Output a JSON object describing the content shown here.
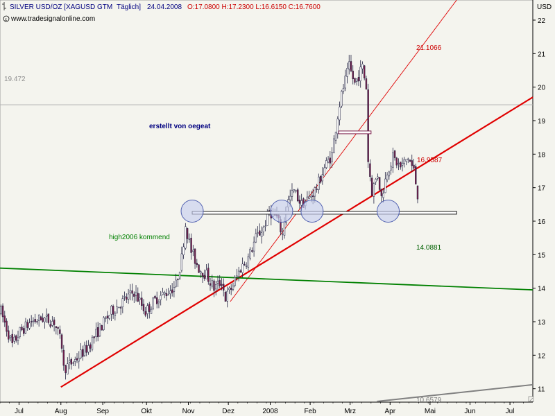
{
  "header": {
    "symbol": "SILVER USD/OZ [XAGUSD GTM",
    "period": "Täglich]",
    "date": "24.04.2008",
    "ohlc": "O:17.0800 H:17.2300 L:16.6150 C:16.7600",
    "website": "www.tradesignalonline.com",
    "currency": "USD"
  },
  "colors": {
    "background": "#f4f4ee",
    "up_candle": "#ffffff",
    "down_candle": "#7a1f4b",
    "trend_red": "#e00000",
    "trend_green": "#008000",
    "trend_gray": "#808080",
    "circle_fill": "#c8d0f0",
    "circle_stroke": "#5060b0",
    "text_blue": "#000080"
  },
  "annotations": {
    "author": "erstellt von oegeat",
    "green_label": "high2006 kommend",
    "level_19472": "19.472",
    "red_upper": "21.1066",
    "red_lower": "16.9587",
    "green_value": "14.0881",
    "gray_value": "10.6579"
  },
  "chart_data": {
    "type": "candlestick",
    "ylim": [
      10.6,
      22.6
    ],
    "y_ticks": [
      11,
      12,
      13,
      14,
      15,
      16,
      17,
      18,
      19,
      20,
      21,
      22
    ],
    "x_labels": [
      "Jul",
      "Aug",
      "Sep",
      "Okt",
      "Nov",
      "Dez",
      "2008",
      "Feb",
      "Mrz",
      "Apr",
      "Mai",
      "Jun",
      "Jul"
    ],
    "x_label_index": [
      10,
      32,
      54,
      77,
      99,
      120,
      142,
      163,
      184,
      205,
      226,
      247,
      268
    ],
    "n_bars": 280,
    "price_path": [
      [
        0,
        13.3
      ],
      [
        6,
        12.3
      ],
      [
        10,
        12.7
      ],
      [
        16,
        13.0
      ],
      [
        22,
        13.1
      ],
      [
        28,
        13.0
      ],
      [
        32,
        12.3
      ],
      [
        33,
        11.6
      ],
      [
        38,
        11.8
      ],
      [
        45,
        12.2
      ],
      [
        52,
        12.8
      ],
      [
        58,
        13.3
      ],
      [
        64,
        13.6
      ],
      [
        70,
        13.9
      ],
      [
        76,
        13.3
      ],
      [
        82,
        13.7
      ],
      [
        88,
        13.9
      ],
      [
        92,
        14.1
      ],
      [
        95,
        14.9
      ],
      [
        97,
        15.9
      ],
      [
        100,
        15.1
      ],
      [
        104,
        14.6
      ],
      [
        108,
        14.4
      ],
      [
        112,
        14.0
      ],
      [
        116,
        14.2
      ],
      [
        118,
        13.7
      ],
      [
        122,
        14.1
      ],
      [
        126,
        14.6
      ],
      [
        130,
        14.9
      ],
      [
        134,
        15.5
      ],
      [
        138,
        15.8
      ],
      [
        141,
        16.3
      ],
      [
        145,
        16.1
      ],
      [
        148,
        15.6
      ],
      [
        150,
        16.5
      ],
      [
        154,
        16.9
      ],
      [
        158,
        16.5
      ],
      [
        162,
        16.7
      ],
      [
        166,
        17.0
      ],
      [
        170,
        17.6
      ],
      [
        174,
        18.0
      ],
      [
        176,
        18.8
      ],
      [
        178,
        19.5
      ],
      [
        180,
        20.0
      ],
      [
        183,
        20.6
      ],
      [
        186,
        20.1
      ],
      [
        190,
        20.6
      ],
      [
        192,
        20.0
      ],
      [
        193,
        17.8
      ],
      [
        195,
        16.9
      ],
      [
        198,
        17.4
      ],
      [
        200,
        16.7
      ],
      [
        203,
        17.5
      ],
      [
        206,
        17.9
      ],
      [
        210,
        17.6
      ],
      [
        214,
        17.9
      ],
      [
        217,
        17.5
      ],
      [
        219,
        16.8
      ]
    ],
    "lines": [
      {
        "name": "red_main",
        "from": [
          32,
          11.05
        ],
        "to": [
          280,
          19.7
        ]
      },
      {
        "name": "red_thin",
        "from": [
          121,
          13.6
        ],
        "to": [
          240,
          22.6
        ]
      },
      {
        "name": "green",
        "from": [
          0,
          14.6
        ],
        "to": [
          280,
          13.95
        ]
      },
      {
        "name": "gray",
        "from": [
          198,
          10.62
        ],
        "to": [
          280,
          11.12
        ]
      }
    ],
    "support_level": {
      "value": 16.25,
      "from": 101,
      "to": 240
    },
    "gap_box": {
      "value": 18.65,
      "from": 178,
      "to": 195
    },
    "h_level": 19.472,
    "circles": [
      {
        "x": 101,
        "y": 16.3
      },
      {
        "x": 148,
        "y": 16.3
      },
      {
        "x": 164,
        "y": 16.3
      },
      {
        "x": 204,
        "y": 16.3
      }
    ]
  }
}
